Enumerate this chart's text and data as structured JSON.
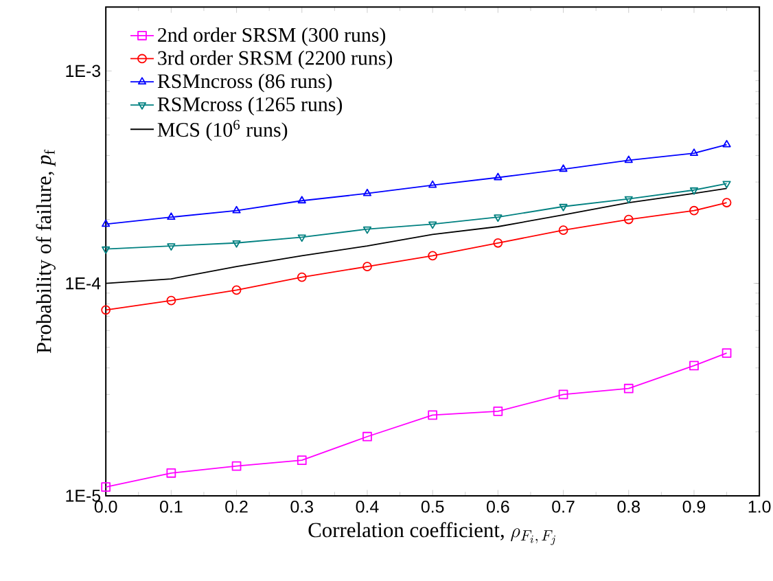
{
  "chart_data": {
    "type": "line",
    "xlabel": "\\mbox{Correlation coefficient, }\\rho_{F_i,\\,F_j}",
    "ylabel": "Probability of failure, *p*$_{f}$",
    "log": "y",
    "xlim": [
      0,
      1
    ],
    "ylim": [
      1e-05,
      0.002
    ],
    "xticks": [
      {
        "value": 0,
        "label": "0.0"
      },
      0.1,
      0.2,
      0.3,
      0.4,
      0.5,
      0.6,
      0.7,
      0.8,
      0.9,
      {
        "value": 1,
        "label": "1.0"
      }
    ],
    "yticks": [
      {
        "value": 1e-05,
        "label": "1E-5"
      },
      {
        "value": 0.0001,
        "label": "1E-4"
      },
      {
        "value": 0.001,
        "label": "1E-3"
      }
    ],
    "x": [
      0,
      0.1,
      0.2,
      0.3,
      0.4,
      0.5,
      0.6,
      0.7,
      0.8,
      0.9,
      0.95
    ],
    "legend": "top left",
    "grid": false,
    "series": [
      {
        "name": "2nd order SRSM (300 runs)",
        "color": "#ff00ff",
        "marker": "square",
        "values": [
          1.1e-05,
          1.28e-05,
          1.38e-05,
          1.47e-05,
          1.9e-05,
          2.4e-05,
          2.5e-05,
          3e-05,
          3.2e-05,
          4.1e-05,
          4.7e-05
        ]
      },
      {
        "name": "3rd order SRSM (2200 runs)",
        "color": "#ff0000",
        "marker": "circle",
        "values": [
          7.5e-05,
          8.3e-05,
          9.3e-05,
          0.000107,
          0.00012,
          0.000135,
          0.000155,
          0.000178,
          0.0002,
          0.00022,
          0.00024
        ]
      },
      {
        "name": "RSMncross (86 runs)",
        "color": "#0000ff",
        "marker": "triangle",
        "values": [
          0.00019,
          0.000205,
          0.00022,
          0.000245,
          0.000265,
          0.00029,
          0.000315,
          0.000345,
          0.00038,
          0.00041,
          0.00045
        ]
      },
      {
        "name": "RSMcross (1265 runs)",
        "color": "#008080",
        "marker": "triangle-down",
        "values": [
          0.000145,
          0.00015,
          0.000155,
          0.000165,
          0.00018,
          0.00019,
          0.000205,
          0.00023,
          0.00025,
          0.000275,
          0.000295
        ]
      },
      {
        "name": "MCS (10$^{6}$ runs)",
        "color": "#000000",
        "marker": "none",
        "values": [
          0.0001,
          0.000105,
          0.00012,
          0.000135,
          0.00015,
          0.00017,
          0.000185,
          0.00021,
          0.00024,
          0.000265,
          0.00028
        ]
      }
    ]
  }
}
